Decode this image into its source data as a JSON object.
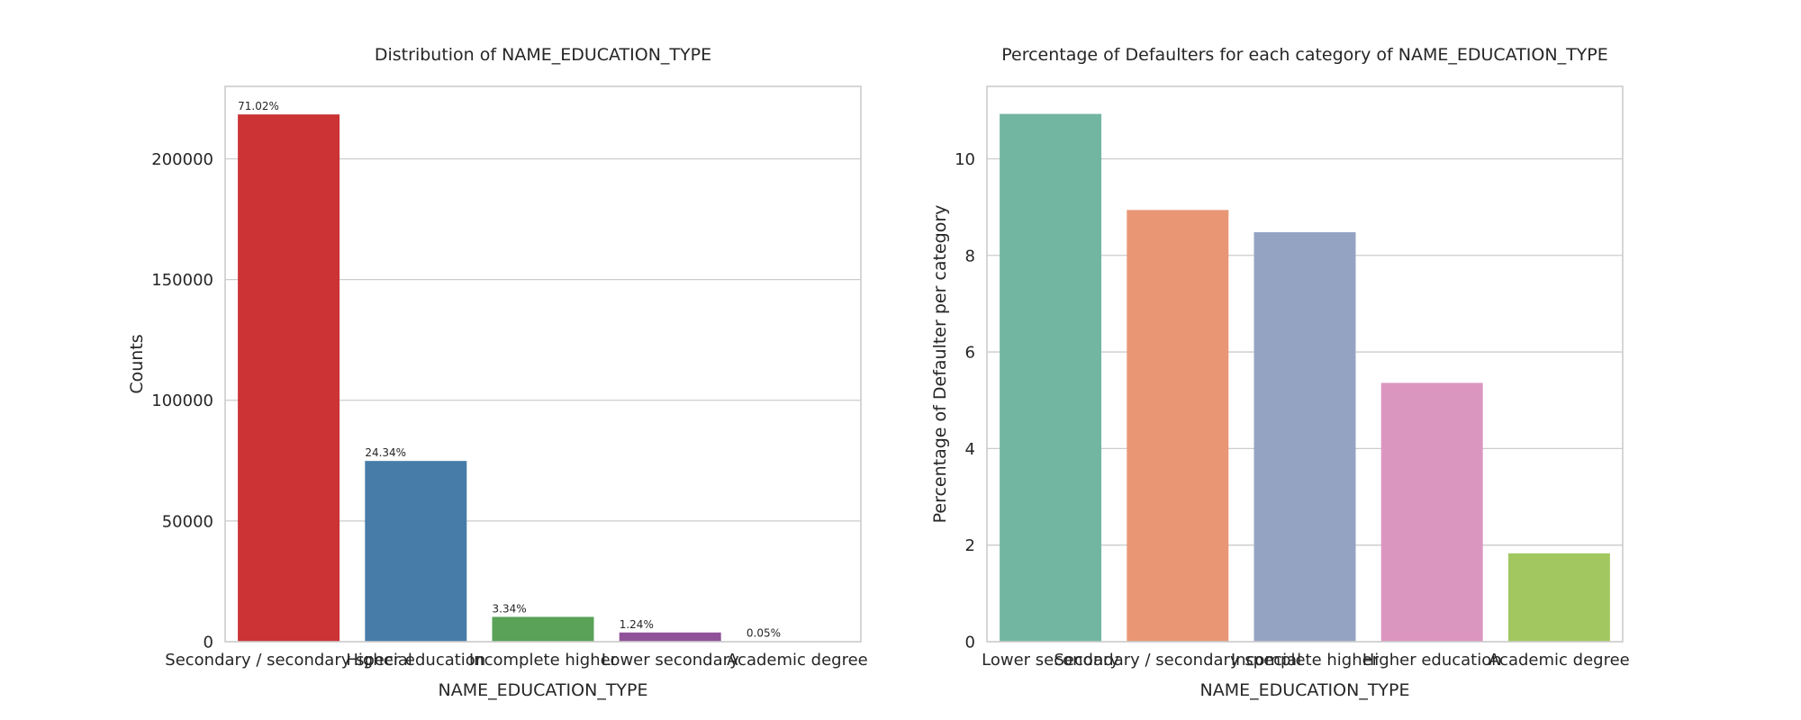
{
  "chart_data": [
    {
      "type": "bar",
      "title": "Distribution of NAME_EDUCATION_TYPE",
      "xlabel": "NAME_EDUCATION_TYPE",
      "ylabel": "Counts",
      "ylim": [
        0,
        230000
      ],
      "yticks": [
        0,
        50000,
        100000,
        150000,
        200000
      ],
      "ytick_labels": [
        "0",
        "50000",
        "100000",
        "150000",
        "200000"
      ],
      "grid": true,
      "categories": [
        "Secondary / secondary special",
        "Higher education",
        "Incomplete higher",
        "Lower secondary",
        "Academic degree"
      ],
      "values": [
        218391,
        74863,
        10277,
        3816,
        164
      ],
      "bar_labels": [
        "71.02%",
        "24.34%",
        "3.34%",
        "1.24%",
        "0.05%"
      ],
      "colors": [
        "#cb3335",
        "#477ca8",
        "#59a257",
        "#8f5299",
        "#e6731c"
      ]
    },
    {
      "type": "bar",
      "title": "Percentage of Defaulters for each category of NAME_EDUCATION_TYPE",
      "xlabel": "NAME_EDUCATION_TYPE",
      "ylabel": "Percentage of Defaulter per category",
      "ylim": [
        0,
        11.5
      ],
      "yticks": [
        0,
        2,
        4,
        6,
        8,
        10
      ],
      "ytick_labels": [
        "0",
        "2",
        "4",
        "6",
        "8",
        "10"
      ],
      "grid": true,
      "categories": [
        "Lower secondary",
        "Secondary / secondary special",
        "Incomplete higher",
        "Higher education",
        "Academic degree"
      ],
      "values": [
        10.93,
        8.94,
        8.48,
        5.36,
        1.83
      ],
      "colors": [
        "#72b6a1",
        "#e99675",
        "#95a3c3",
        "#db96c0",
        "#a2c760"
      ]
    }
  ]
}
